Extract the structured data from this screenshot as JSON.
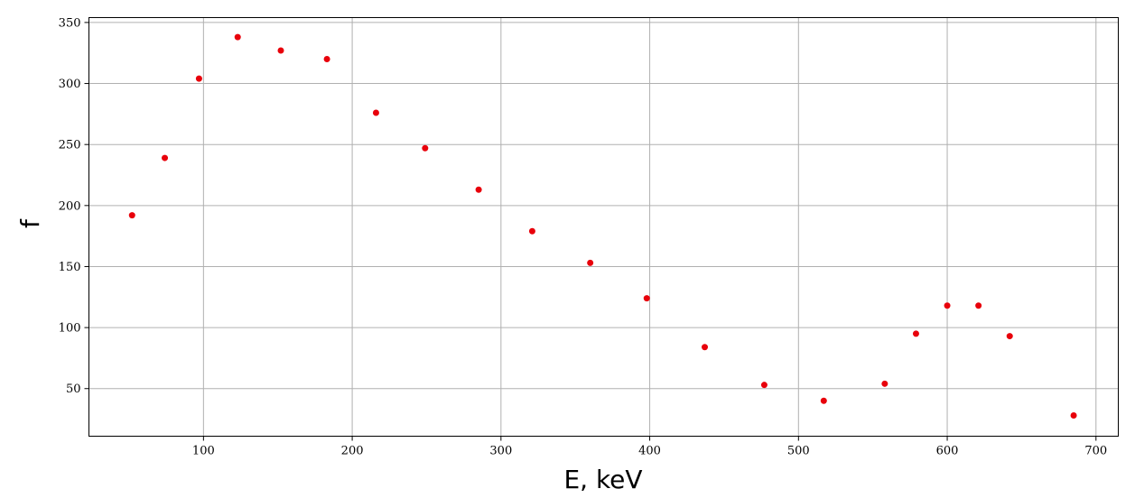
{
  "chart_data": {
    "type": "scatter",
    "title": "",
    "xlabel": "E, keV",
    "ylabel": "f",
    "xlim": [
      23,
      715
    ],
    "ylim": [
      11,
      354
    ],
    "xticks": [
      100,
      200,
      300,
      400,
      500,
      600,
      700
    ],
    "yticks": [
      50,
      100,
      150,
      200,
      250,
      300,
      350
    ],
    "grid": true,
    "marker_color": "#e8000b",
    "series": [
      {
        "x": [
          52,
          74,
          97,
          123,
          152,
          183,
          216,
          249,
          285,
          321,
          360,
          398,
          437,
          477,
          517,
          558,
          579,
          600,
          621,
          642,
          685
        ],
        "y": [
          192,
          239,
          304,
          338,
          327,
          320,
          276,
          247,
          213,
          179,
          153,
          124,
          84,
          53,
          40,
          54,
          95,
          118,
          118,
          93,
          28
        ]
      }
    ]
  }
}
